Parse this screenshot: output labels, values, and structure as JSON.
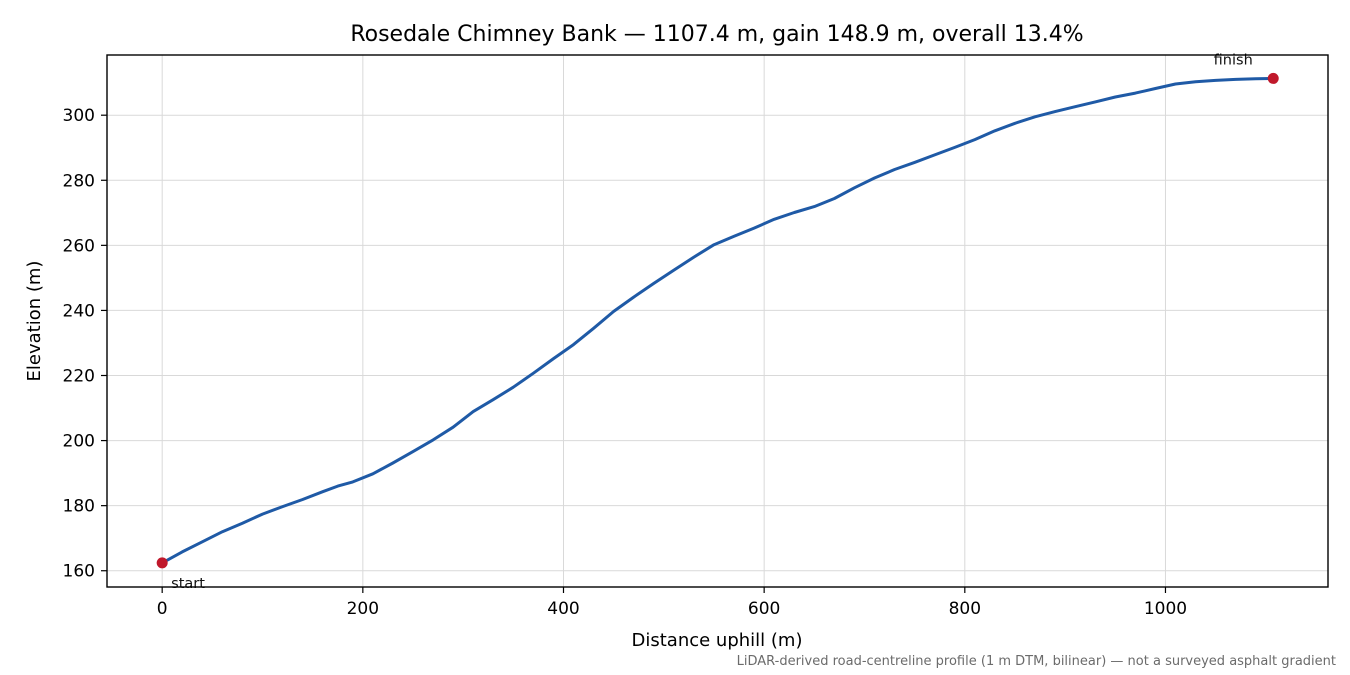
{
  "chart_data": {
    "type": "line",
    "title": "Rosedale Chimney Bank — 1107.4 m, gain 148.9 m, overall 13.4%",
    "xlabel": "Distance uphill (m)",
    "ylabel": "Elevation (m)",
    "xlim": [
      -55,
      1162
    ],
    "ylim": [
      155,
      318.5
    ],
    "xticks": [
      0,
      200,
      400,
      600,
      800,
      1000
    ],
    "yticks": [
      160,
      180,
      200,
      220,
      240,
      260,
      280,
      300
    ],
    "grid": true,
    "line_color": "#1f5aa6",
    "marker_color": "#c0182b",
    "series": [
      {
        "x": [
          0,
          20,
          40,
          60,
          80,
          100,
          120,
          140,
          160,
          175,
          190,
          210,
          230,
          250,
          270,
          290,
          310,
          330,
          350,
          370,
          390,
          410,
          430,
          450,
          470,
          490,
          510,
          530,
          550,
          570,
          590,
          610,
          630,
          650,
          670,
          690,
          710,
          730,
          750,
          770,
          790,
          810,
          830,
          850,
          870,
          890,
          910,
          930,
          950,
          970,
          990,
          1010,
          1030,
          1050,
          1070,
          1090,
          1107.4
        ],
        "y": [
          162.4,
          165.8,
          168.9,
          172.0,
          174.6,
          177.4,
          179.7,
          181.9,
          184.3,
          186.0,
          187.3,
          189.8,
          193.1,
          196.6,
          200.2,
          204.1,
          208.9,
          212.6,
          216.4,
          220.7,
          225.2,
          229.5,
          234.5,
          239.7,
          244.1,
          248.3,
          252.4,
          256.4,
          260.2,
          262.8,
          265.3,
          268.0,
          270.1,
          271.9,
          274.4,
          277.7,
          280.7,
          283.3,
          285.5,
          287.8,
          290.1,
          292.5,
          295.2,
          297.5,
          299.5,
          301.1,
          302.6,
          304.1,
          305.6,
          306.8,
          308.2,
          309.6,
          310.3,
          310.7,
          311.0,
          311.2,
          311.3
        ]
      }
    ],
    "annotations": [
      {
        "text": "start",
        "x": 0,
        "y": 162.4
      },
      {
        "text": "finish",
        "x": 1107.4,
        "y": 311.3
      }
    ],
    "footnote": "LiDAR-derived road-centreline profile (1 m DTM, bilinear) — not a surveyed asphalt gradient"
  }
}
